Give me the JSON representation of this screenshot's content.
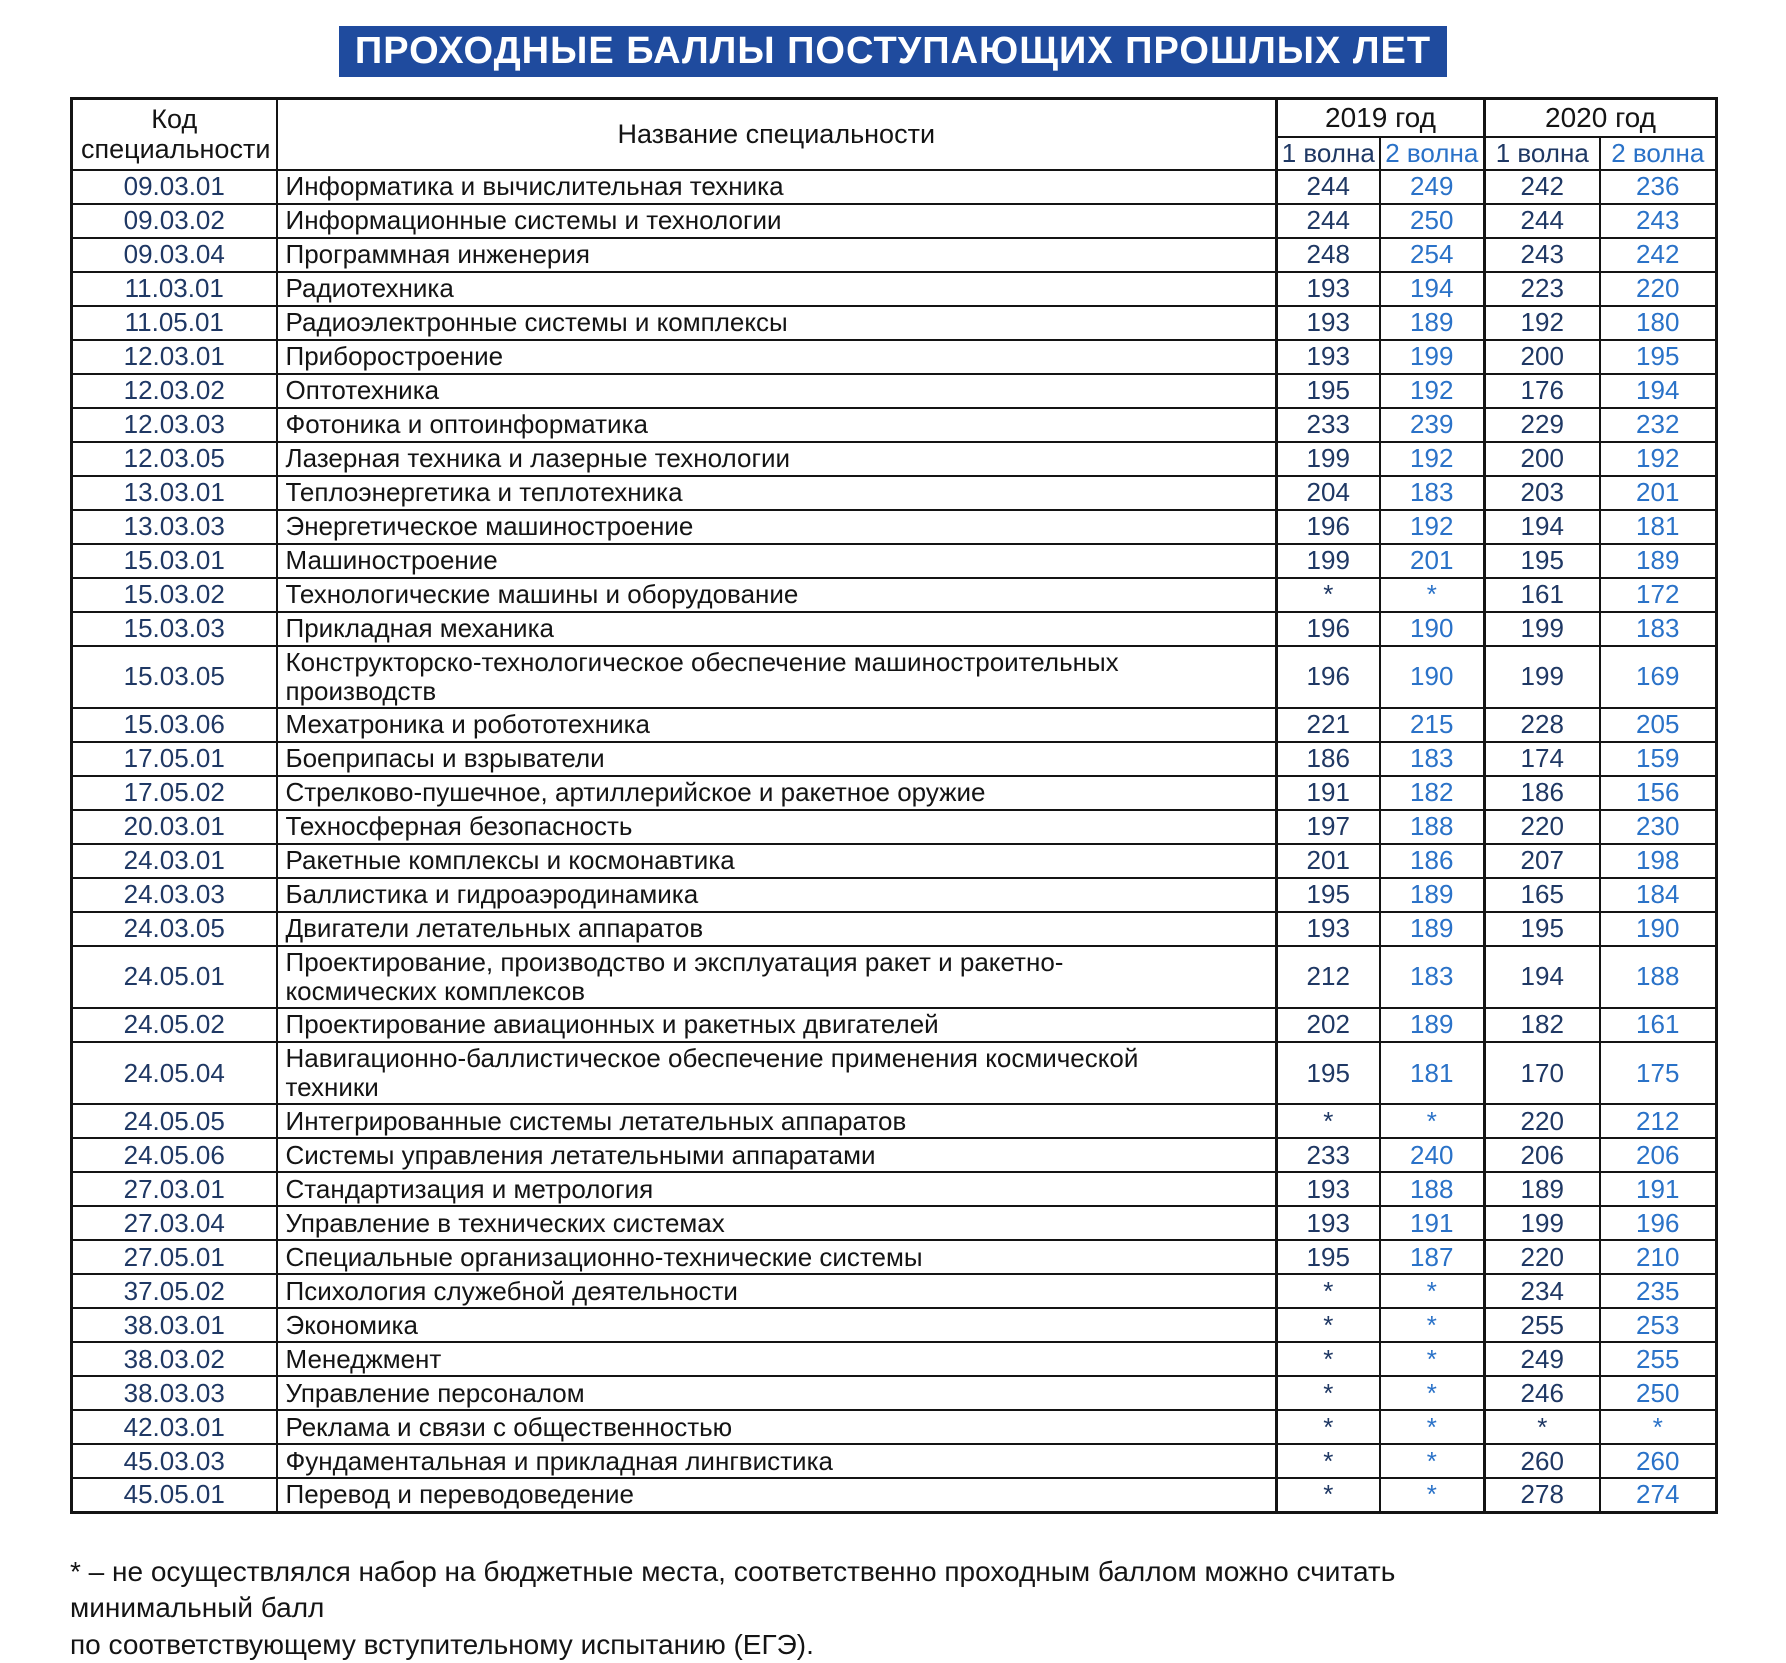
{
  "title": "ПРОХОДНЫЕ БАЛЛЫ ПОСТУПАЮЩИХ ПРОШЛЫХ ЛЕТ",
  "colors": {
    "title_background": "#1F4B9E",
    "wave1_text": "#1F3864",
    "wave2_text": "#2A72C8",
    "body_text": "#141414"
  },
  "table": {
    "headers": {
      "code": "Код специальности",
      "name": "Название специальности",
      "year2019": "2019 год",
      "year2020": "2020 год",
      "wave1": "1 волна",
      "wave2": "2 волна"
    },
    "rows": [
      {
        "code": "09.03.01",
        "name": "Информатика и вычислительная техника",
        "y2019w1": "244",
        "y2019w2": "249",
        "y2020w1": "242",
        "y2020w2": "236"
      },
      {
        "code": "09.03.02",
        "name": "Информационные системы и технологии",
        "y2019w1": "244",
        "y2019w2": "250",
        "y2020w1": "244",
        "y2020w2": "243"
      },
      {
        "code": "09.03.04",
        "name": "Программная инженерия",
        "y2019w1": "248",
        "y2019w2": "254",
        "y2020w1": "243",
        "y2020w2": "242"
      },
      {
        "code": "11.03.01",
        "name": "Радиотехника",
        "y2019w1": "193",
        "y2019w2": "194",
        "y2020w1": "223",
        "y2020w2": "220"
      },
      {
        "code": "11.05.01",
        "name": "Радиоэлектронные системы и комплексы",
        "y2019w1": "193",
        "y2019w2": "189",
        "y2020w1": "192",
        "y2020w2": "180"
      },
      {
        "code": "12.03.01",
        "name": "Приборостроение",
        "y2019w1": "193",
        "y2019w2": "199",
        "y2020w1": "200",
        "y2020w2": "195"
      },
      {
        "code": "12.03.02",
        "name": "Оптотехника",
        "y2019w1": "195",
        "y2019w2": "192",
        "y2020w1": "176",
        "y2020w2": "194"
      },
      {
        "code": "12.03.03",
        "name": "Фотоника и оптоинформатика",
        "y2019w1": "233",
        "y2019w2": "239",
        "y2020w1": "229",
        "y2020w2": "232"
      },
      {
        "code": "12.03.05",
        "name": "Лазерная техника и лазерные технологии",
        "y2019w1": "199",
        "y2019w2": "192",
        "y2020w1": "200",
        "y2020w2": "192"
      },
      {
        "code": "13.03.01",
        "name": "Теплоэнергетика и теплотехника",
        "y2019w1": "204",
        "y2019w2": "183",
        "y2020w1": "203",
        "y2020w2": "201"
      },
      {
        "code": "13.03.03",
        "name": "Энергетическое машиностроение",
        "y2019w1": "196",
        "y2019w2": "192",
        "y2020w1": "194",
        "y2020w2": "181"
      },
      {
        "code": "15.03.01",
        "name": "Машиностроение",
        "y2019w1": "199",
        "y2019w2": "201",
        "y2020w1": "195",
        "y2020w2": "189"
      },
      {
        "code": "15.03.02",
        "name": "Технологические машины и оборудование",
        "y2019w1": "*",
        "y2019w2": "*",
        "y2020w1": "161",
        "y2020w2": "172"
      },
      {
        "code": "15.03.03",
        "name": "Прикладная механика",
        "y2019w1": "196",
        "y2019w2": "190",
        "y2020w1": "199",
        "y2020w2": "183"
      },
      {
        "code": "15.03.05",
        "name": "Конструкторско-технологическое обеспечение машиностроительных\nпроизводств",
        "y2019w1": "196",
        "y2019w2": "190",
        "y2020w1": "199",
        "y2020w2": "169"
      },
      {
        "code": "15.03.06",
        "name": "Мехатроника и робототехника",
        "y2019w1": "221",
        "y2019w2": "215",
        "y2020w1": "228",
        "y2020w2": "205"
      },
      {
        "code": "17.05.01",
        "name": "Боеприпасы и взрыватели",
        "y2019w1": "186",
        "y2019w2": "183",
        "y2020w1": "174",
        "y2020w2": "159"
      },
      {
        "code": "17.05.02",
        "name": "Стрелково-пушечное, артиллерийское и ракетное оружие",
        "y2019w1": "191",
        "y2019w2": "182",
        "y2020w1": "186",
        "y2020w2": "156"
      },
      {
        "code": "20.03.01",
        "name": "Техносферная безопасность",
        "y2019w1": "197",
        "y2019w2": "188",
        "y2020w1": "220",
        "y2020w2": "230"
      },
      {
        "code": "24.03.01",
        "name": "Ракетные комплексы и космонавтика",
        "y2019w1": "201",
        "y2019w2": "186",
        "y2020w1": "207",
        "y2020w2": "198"
      },
      {
        "code": "24.03.03",
        "name": "Баллистика и гидроаэродинамика",
        "y2019w1": "195",
        "y2019w2": "189",
        "y2020w1": "165",
        "y2020w2": "184"
      },
      {
        "code": "24.03.05",
        "name": "Двигатели летательных аппаратов",
        "y2019w1": "193",
        "y2019w2": "189",
        "y2020w1": "195",
        "y2020w2": "190"
      },
      {
        "code": "24.05.01",
        "name": "Проектирование, производство и эксплуатация ракет и ракетно-\nкосмических комплексов",
        "y2019w1": "212",
        "y2019w2": "183",
        "y2020w1": "194",
        "y2020w2": "188"
      },
      {
        "code": "24.05.02",
        "name": "Проектирование авиационных и ракетных двигателей",
        "y2019w1": "202",
        "y2019w2": "189",
        "y2020w1": "182",
        "y2020w2": "161"
      },
      {
        "code": "24.05.04",
        "name": "Навигационно-баллистическое обеспечение применения космической\nтехники",
        "y2019w1": "195",
        "y2019w2": "181",
        "y2020w1": "170",
        "y2020w2": "175"
      },
      {
        "code": "24.05.05",
        "name": "Интегрированные системы летательных аппаратов",
        "y2019w1": "*",
        "y2019w2": "*",
        "y2020w1": "220",
        "y2020w2": "212"
      },
      {
        "code": "24.05.06",
        "name": "Системы управления летательными аппаратами",
        "y2019w1": "233",
        "y2019w2": "240",
        "y2020w1": "206",
        "y2020w2": "206"
      },
      {
        "code": "27.03.01",
        "name": "Стандартизация и метрология",
        "y2019w1": "193",
        "y2019w2": "188",
        "y2020w1": "189",
        "y2020w2": "191"
      },
      {
        "code": "27.03.04",
        "name": "Управление в технических системах",
        "y2019w1": "193",
        "y2019w2": "191",
        "y2020w1": "199",
        "y2020w2": "196"
      },
      {
        "code": "27.05.01",
        "name": "Специальные организационно-технические системы",
        "y2019w1": "195",
        "y2019w2": "187",
        "y2020w1": "220",
        "y2020w2": "210"
      },
      {
        "code": "37.05.02",
        "name": "Психология служебной деятельности",
        "y2019w1": "*",
        "y2019w2": "*",
        "y2020w1": "234",
        "y2020w2": "235"
      },
      {
        "code": "38.03.01",
        "name": "Экономика",
        "y2019w1": "*",
        "y2019w2": "*",
        "y2020w1": "255",
        "y2020w2": "253"
      },
      {
        "code": "38.03.02",
        "name": "Менеджмент",
        "y2019w1": "*",
        "y2019w2": "*",
        "y2020w1": "249",
        "y2020w2": "255"
      },
      {
        "code": "38.03.03",
        "name": "Управление персоналом",
        "y2019w1": "*",
        "y2019w2": "*",
        "y2020w1": "246",
        "y2020w2": "250"
      },
      {
        "code": "42.03.01",
        "name": "Реклама и связи с общественностью",
        "y2019w1": "*",
        "y2019w2": "*",
        "y2020w1": "*",
        "y2020w2": "*"
      },
      {
        "code": "45.03.03",
        "name": "Фундаментальная и прикладная лингвистика",
        "y2019w1": "*",
        "y2019w2": "*",
        "y2020w1": "260",
        "y2020w2": "260"
      },
      {
        "code": "45.05.01",
        "name": "Перевод и переводоведение",
        "y2019w1": "*",
        "y2019w2": "*",
        "y2020w1": "278",
        "y2020w2": "274"
      }
    ]
  },
  "footnote": {
    "line1": "* – не осуществлялся набор на бюджетные места, соответственно проходным баллом можно считать минимальный балл",
    "line2": "по соответствующему вступительному испытанию (ЕГЭ)."
  }
}
